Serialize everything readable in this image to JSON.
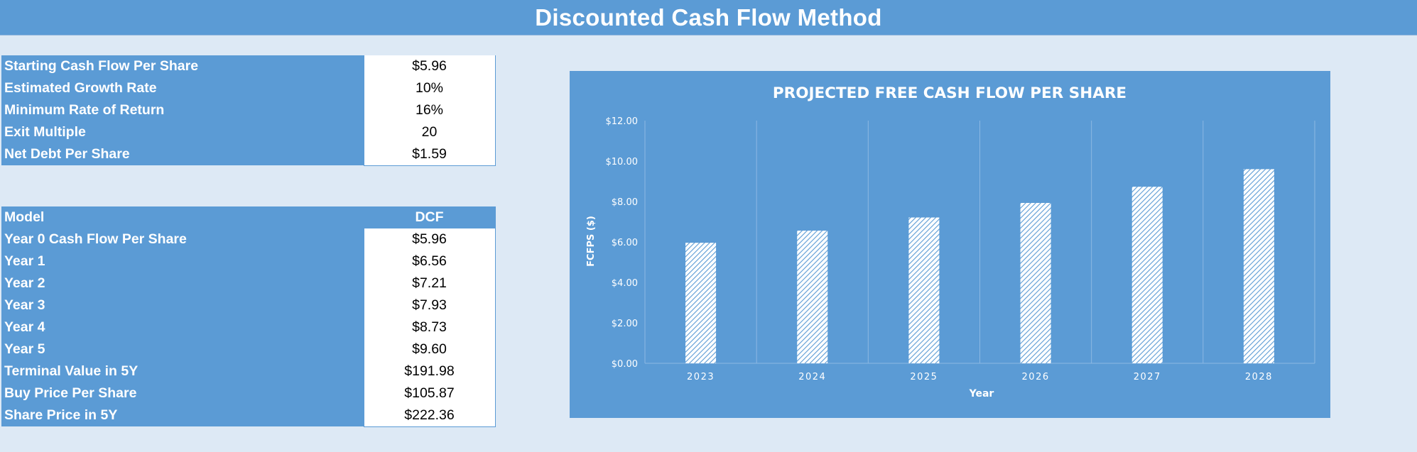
{
  "page_title": "Discounted Cash Flow Method",
  "inputs": [
    {
      "label": "Starting Cash Flow Per Share",
      "value": "$5.96"
    },
    {
      "label": "Estimated Growth Rate",
      "value": "10%"
    },
    {
      "label": "Minimum Rate of Return",
      "value": "16%"
    },
    {
      "label": "Exit Multiple",
      "value": "20"
    },
    {
      "label": "Net Debt Per Share",
      "value": "$1.59"
    }
  ],
  "model": {
    "header_label": "Model",
    "header_value": "DCF",
    "rows": [
      {
        "label": "Year 0 Cash Flow Per Share",
        "value": "$5.96"
      },
      {
        "label": "Year 1",
        "value": "$6.56"
      },
      {
        "label": "Year 2",
        "value": "$7.21"
      },
      {
        "label": "Year 3",
        "value": "$7.93"
      },
      {
        "label": "Year 4",
        "value": "$8.73"
      },
      {
        "label": "Year 5",
        "value": "$9.60"
      },
      {
        "label": "Terminal Value in 5Y",
        "value": "$191.98"
      },
      {
        "label": "Buy Price Per Share",
        "value": "$105.87"
      },
      {
        "label": "Share Price in 5Y",
        "value": "$222.36"
      }
    ]
  },
  "colors": {
    "accent": "#5b9bd5",
    "background": "#dde9f5",
    "cell": "#ffffff"
  },
  "chart_data": {
    "type": "bar",
    "title": "PROJECTED FREE CASH FLOW PER SHARE",
    "xlabel": "Year",
    "ylabel": "FCFPS ($)",
    "categories": [
      "2023",
      "2024",
      "2025",
      "2026",
      "2027",
      "2028"
    ],
    "values": [
      5.96,
      6.56,
      7.21,
      7.93,
      8.73,
      9.6
    ],
    "ylim": [
      0,
      12
    ],
    "yticks": [
      "$0.00",
      "$2.00",
      "$4.00",
      "$6.00",
      "$8.00",
      "$10.00",
      "$12.00"
    ],
    "grid": "vertical",
    "bar_fill": "diagonal-hatch"
  }
}
